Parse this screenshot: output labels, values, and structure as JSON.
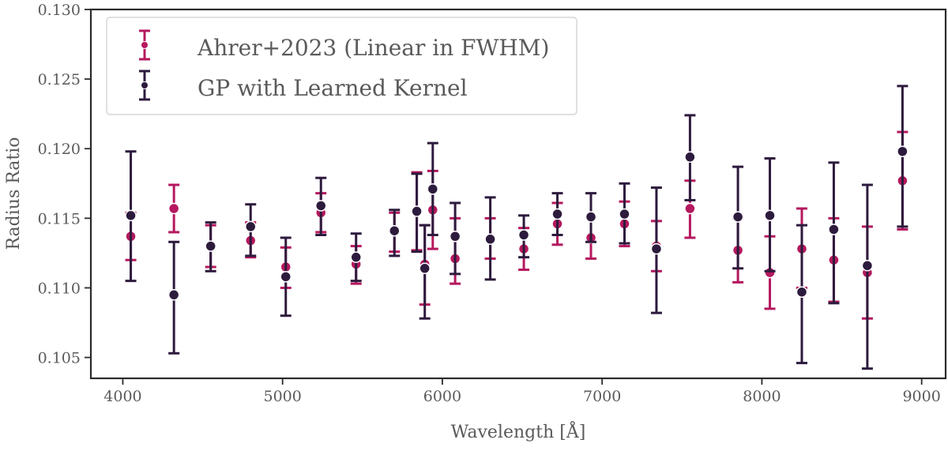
{
  "chart_data": {
    "type": "scatter",
    "title": "",
    "xlabel": "Wavelength [Å]",
    "ylabel": "Radius Ratio",
    "xlim": [
      3800,
      9150
    ],
    "ylim": [
      0.1035,
      0.13
    ],
    "xticks": [
      4000,
      5000,
      6000,
      7000,
      8000,
      9000
    ],
    "yticks": [
      0.105,
      0.11,
      0.115,
      0.12,
      0.125,
      0.13
    ],
    "xtick_labels": [
      "4000",
      "5000",
      "6000",
      "7000",
      "8000",
      "9000"
    ],
    "ytick_labels": [
      "0.105",
      "0.110",
      "0.115",
      "0.120",
      "0.125",
      "0.130"
    ],
    "grid": false,
    "legend_position": "top-left",
    "series": [
      {
        "name": "Ahrer+2023 (Linear in FWHM)",
        "color": "#b5185e",
        "points": [
          {
            "x": 4050,
            "y": 0.1137,
            "lo": 0.112,
            "hi": 0.1154
          },
          {
            "x": 4320,
            "y": 0.1157,
            "lo": 0.114,
            "hi": 0.1174
          },
          {
            "x": 4550,
            "y": 0.113,
            "lo": 0.1115,
            "hi": 0.1145
          },
          {
            "x": 4800,
            "y": 0.1134,
            "lo": 0.1122,
            "hi": 0.1147
          },
          {
            "x": 5020,
            "y": 0.1115,
            "lo": 0.11,
            "hi": 0.1129
          },
          {
            "x": 5240,
            "y": 0.1154,
            "lo": 0.114,
            "hi": 0.1168
          },
          {
            "x": 5460,
            "y": 0.1117,
            "lo": 0.1103,
            "hi": 0.113
          },
          {
            "x": 5700,
            "y": 0.114,
            "lo": 0.1126,
            "hi": 0.1154
          },
          {
            "x": 5840,
            "y": 0.1155,
            "lo": 0.1127,
            "hi": 0.1183
          },
          {
            "x": 5890,
            "y": 0.1117,
            "lo": 0.1088,
            "hi": 0.1145
          },
          {
            "x": 5940,
            "y": 0.1156,
            "lo": 0.1128,
            "hi": 0.1184
          },
          {
            "x": 6080,
            "y": 0.1121,
            "lo": 0.1103,
            "hi": 0.115
          },
          {
            "x": 6300,
            "y": 0.1135,
            "lo": 0.1121,
            "hi": 0.115
          },
          {
            "x": 6510,
            "y": 0.1128,
            "lo": 0.1113,
            "hi": 0.1143
          },
          {
            "x": 6720,
            "y": 0.1146,
            "lo": 0.1131,
            "hi": 0.1161
          },
          {
            "x": 6930,
            "y": 0.1136,
            "lo": 0.1121,
            "hi": 0.1151
          },
          {
            "x": 7140,
            "y": 0.1146,
            "lo": 0.113,
            "hi": 0.1162
          },
          {
            "x": 7340,
            "y": 0.113,
            "lo": 0.1112,
            "hi": 0.1148
          },
          {
            "x": 7550,
            "y": 0.1157,
            "lo": 0.1136,
            "hi": 0.1177
          },
          {
            "x": 7850,
            "y": 0.1127,
            "lo": 0.1104,
            "hi": 0.115
          },
          {
            "x": 8050,
            "y": 0.1111,
            "lo": 0.1085,
            "hi": 0.1137
          },
          {
            "x": 8250,
            "y": 0.1128,
            "lo": 0.11,
            "hi": 0.1157
          },
          {
            "x": 8450,
            "y": 0.112,
            "lo": 0.109,
            "hi": 0.115
          },
          {
            "x": 8660,
            "y": 0.1111,
            "lo": 0.1078,
            "hi": 0.1144
          },
          {
            "x": 8880,
            "y": 0.1177,
            "lo": 0.1142,
            "hi": 0.1212
          }
        ]
      },
      {
        "name": "GP with Learned Kernel",
        "color": "#2d1b3d",
        "points": [
          {
            "x": 4050,
            "y": 0.1152,
            "lo": 0.1105,
            "hi": 0.1198
          },
          {
            "x": 4320,
            "y": 0.1095,
            "lo": 0.1053,
            "hi": 0.1133
          },
          {
            "x": 4550,
            "y": 0.113,
            "lo": 0.1112,
            "hi": 0.1147
          },
          {
            "x": 4800,
            "y": 0.1144,
            "lo": 0.1123,
            "hi": 0.116
          },
          {
            "x": 5020,
            "y": 0.1108,
            "lo": 0.108,
            "hi": 0.1136
          },
          {
            "x": 5240,
            "y": 0.1159,
            "lo": 0.1138,
            "hi": 0.1179
          },
          {
            "x": 5460,
            "y": 0.1122,
            "lo": 0.1105,
            "hi": 0.1139
          },
          {
            "x": 5700,
            "y": 0.1141,
            "lo": 0.1123,
            "hi": 0.1156
          },
          {
            "x": 5840,
            "y": 0.1155,
            "lo": 0.1126,
            "hi": 0.1182
          },
          {
            "x": 5890,
            "y": 0.1114,
            "lo": 0.1078,
            "hi": 0.1145
          },
          {
            "x": 5940,
            "y": 0.1171,
            "lo": 0.1138,
            "hi": 0.1204
          },
          {
            "x": 6080,
            "y": 0.1137,
            "lo": 0.111,
            "hi": 0.1161
          },
          {
            "x": 6300,
            "y": 0.1135,
            "lo": 0.1106,
            "hi": 0.1165
          },
          {
            "x": 6510,
            "y": 0.1138,
            "lo": 0.1122,
            "hi": 0.1152
          },
          {
            "x": 6720,
            "y": 0.1153,
            "lo": 0.1138,
            "hi": 0.1168
          },
          {
            "x": 6930,
            "y": 0.1151,
            "lo": 0.1133,
            "hi": 0.1168
          },
          {
            "x": 7140,
            "y": 0.1153,
            "lo": 0.1132,
            "hi": 0.1175
          },
          {
            "x": 7340,
            "y": 0.1128,
            "lo": 0.1082,
            "hi": 0.1172
          },
          {
            "x": 7550,
            "y": 0.1194,
            "lo": 0.1163,
            "hi": 0.1224
          },
          {
            "x": 7850,
            "y": 0.1151,
            "lo": 0.1114,
            "hi": 0.1187
          },
          {
            "x": 8050,
            "y": 0.1152,
            "lo": 0.1112,
            "hi": 0.1193
          },
          {
            "x": 8250,
            "y": 0.1097,
            "lo": 0.1046,
            "hi": 0.1145
          },
          {
            "x": 8450,
            "y": 0.1142,
            "lo": 0.1089,
            "hi": 0.119
          },
          {
            "x": 8660,
            "y": 0.1116,
            "lo": 0.1042,
            "hi": 0.1174
          },
          {
            "x": 8880,
            "y": 0.1198,
            "lo": 0.1144,
            "hi": 0.1245
          }
        ]
      }
    ]
  }
}
